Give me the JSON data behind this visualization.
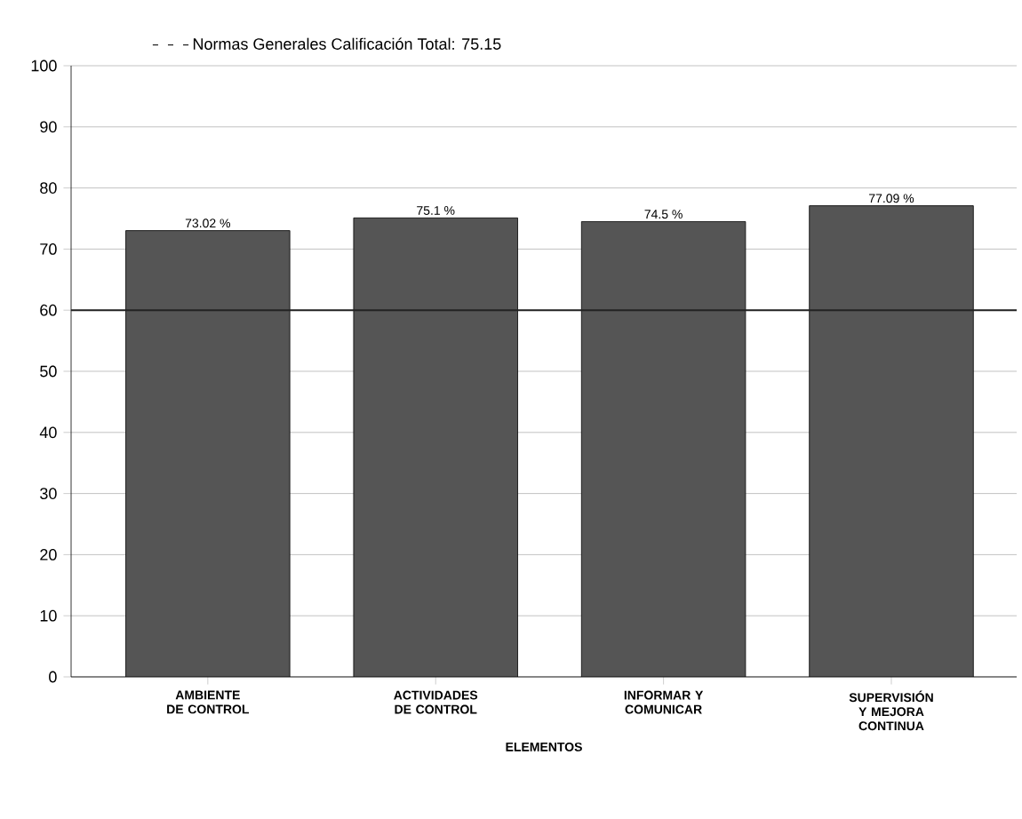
{
  "chart_data": {
    "type": "bar",
    "categories": [
      "AMBIENTE DE CONTROL",
      "ACTIVIDADES DE CONTROL",
      "INFORMAR Y COMUNICAR",
      "SUPERVISIÓN Y MEJORA CONTINUA"
    ],
    "series": [
      {
        "name": "Normas Generales Calificación Total: 75.15",
        "color": "#555555",
        "values": [
          73.02,
          75.1,
          74.5,
          77.09
        ],
        "value_labels": [
          "73.02 %",
          "75.1 %",
          "74.5 %",
          "77.09 %"
        ]
      }
    ],
    "xlabel": "ELEMENTOS",
    "ylim": [
      0,
      100
    ],
    "yticks": [
      0,
      10,
      20,
      30,
      40,
      50,
      60,
      70,
      80,
      90,
      100
    ],
    "ref_lines": [
      {
        "axis": "y",
        "value": 60,
        "color": "#222222"
      }
    ],
    "grid": "y",
    "legend": "top left"
  }
}
